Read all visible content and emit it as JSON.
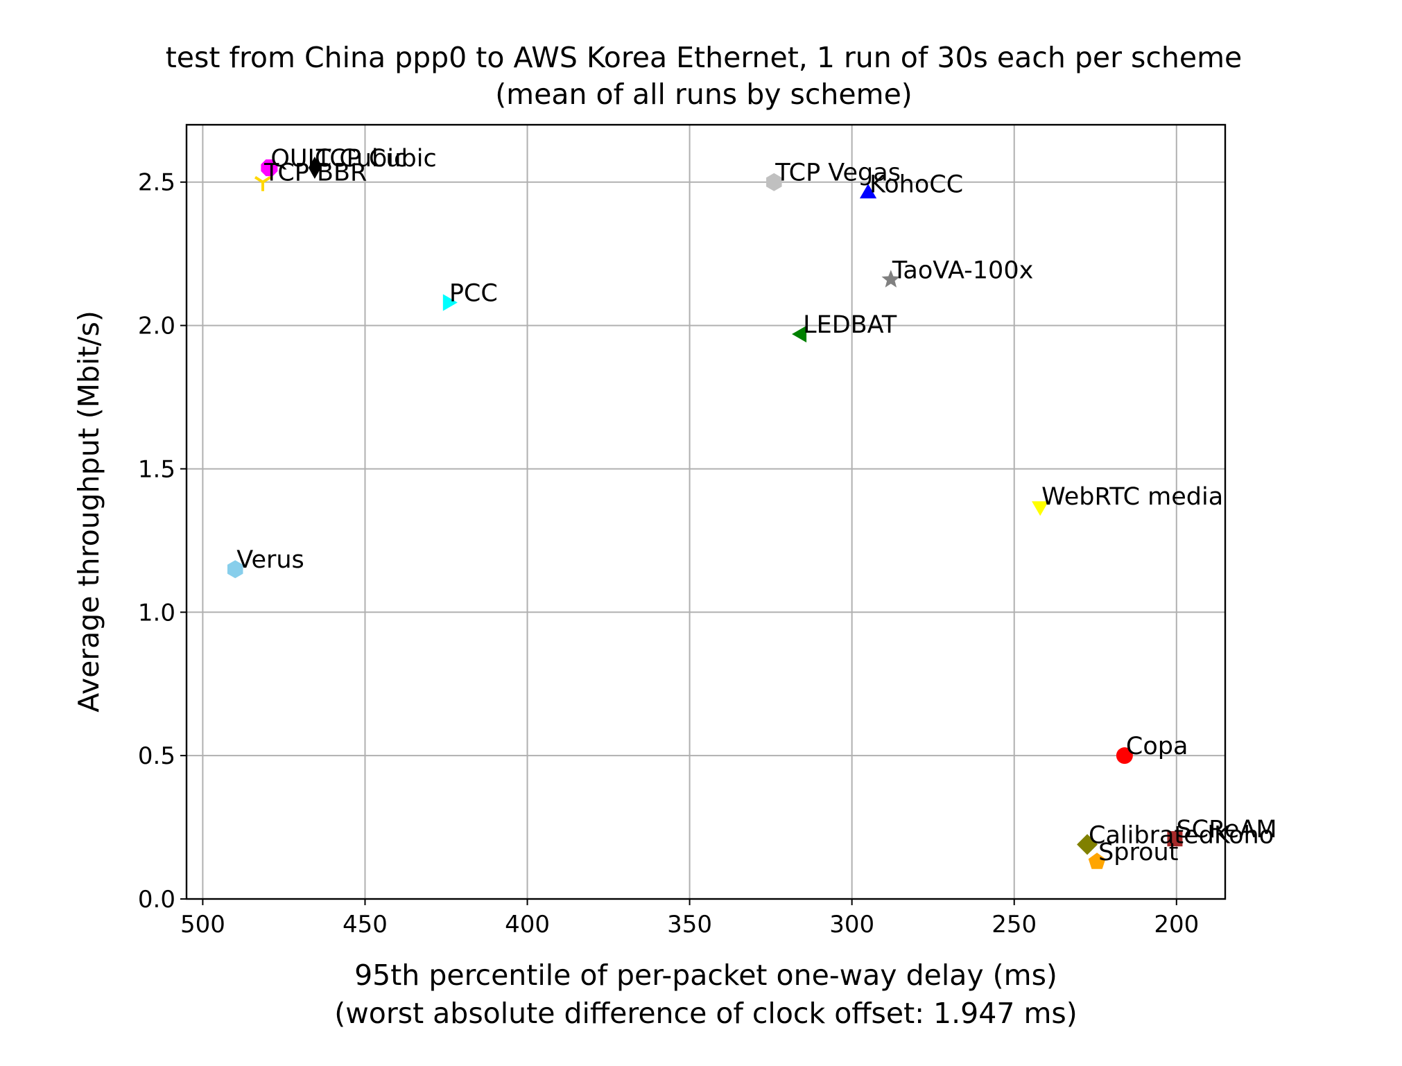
{
  "chart_data": {
    "type": "scatter",
    "title": "test from China ppp0 to AWS Korea Ethernet, 1 run of 30s each per scheme",
    "subtitle": "(mean of all runs by scheme)",
    "xlabel": "95th percentile of per-packet one-way delay (ms)",
    "xlabel_sub": "(worst absolute difference of clock offset: 1.947 ms)",
    "ylabel": "Average throughput (Mbit/s)",
    "xlim": [
      505,
      185
    ],
    "ylim": [
      0.0,
      2.7
    ],
    "x_inverted": true,
    "grid": true,
    "xticks": [
      500,
      450,
      400,
      350,
      300,
      250,
      200
    ],
    "xtick_labels": [
      "500",
      "450",
      "400",
      "350",
      "300",
      "250",
      "200"
    ],
    "yticks": [
      0.0,
      0.5,
      1.0,
      1.5,
      2.0,
      2.5
    ],
    "ytick_labels": [
      "0.0",
      "0.5",
      "1.0",
      "1.5",
      "2.0",
      "2.5"
    ],
    "points": [
      {
        "name": "TCP Cubic",
        "x": 465.5,
        "y": 2.55,
        "color": "#000000",
        "marker": "thin-diamond"
      },
      {
        "name": "QUIC Cubic",
        "x": 479.5,
        "y": 2.55,
        "color": "#ff00ff",
        "marker": "octagon"
      },
      {
        "name": "TCP BBR",
        "x": 481.5,
        "y": 2.5,
        "color": "#ffd700",
        "marker": "tri-down"
      },
      {
        "name": "TCP Vegas",
        "x": 324.0,
        "y": 2.5,
        "color": "#c0c0c0",
        "marker": "hexagon"
      },
      {
        "name": "KohoCC",
        "x": 295.0,
        "y": 2.46,
        "color": "#0000ff",
        "marker": "triangle-up"
      },
      {
        "name": "TaoVA-100x",
        "x": 288.0,
        "y": 2.16,
        "color": "#808080",
        "marker": "star"
      },
      {
        "name": "PCC",
        "x": 424.5,
        "y": 2.08,
        "color": "#00ffff",
        "marker": "triangle-right"
      },
      {
        "name": "LEDBAT",
        "x": 315.5,
        "y": 1.97,
        "color": "#008000",
        "marker": "triangle-left"
      },
      {
        "name": "WebRTC media",
        "x": 242.0,
        "y": 1.37,
        "color": "#ffff00",
        "marker": "triangle-down"
      },
      {
        "name": "Verus",
        "x": 490.0,
        "y": 1.15,
        "color": "#87ceeb",
        "marker": "hexagon"
      },
      {
        "name": "Copa",
        "x": 216.0,
        "y": 0.5,
        "color": "#ff0000",
        "marker": "circle"
      },
      {
        "name": "SCReAM",
        "x": 200.5,
        "y": 0.21,
        "color": "#a52a2a",
        "marker": "square"
      },
      {
        "name": "CalibratedKoho",
        "x": 227.5,
        "y": 0.19,
        "color": "#808000",
        "marker": "diamond"
      },
      {
        "name": "Sprout",
        "x": 224.5,
        "y": 0.13,
        "color": "#ffa500",
        "marker": "pentagon"
      }
    ]
  }
}
